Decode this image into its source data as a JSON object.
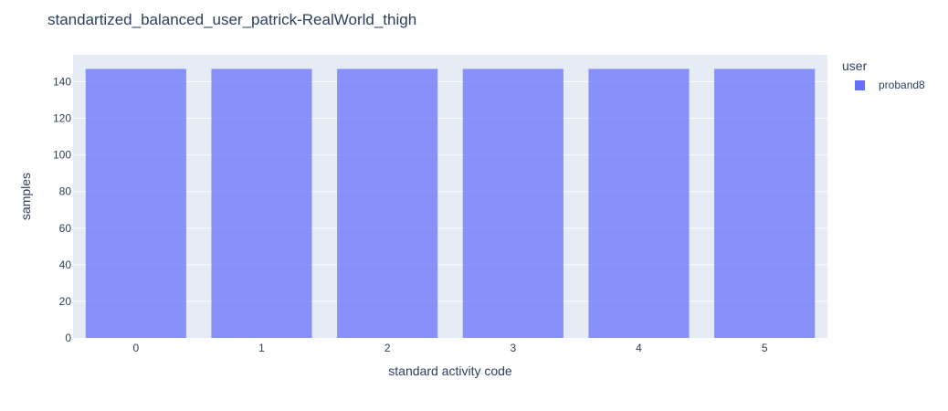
{
  "title": "standartized_balanced_user_patrick-RealWorld_thigh",
  "chart_data": {
    "type": "bar",
    "title": "standartized_balanced_user_patrick-RealWorld_thigh",
    "xlabel": "standard activity code",
    "ylabel": "samples",
    "categories": [
      "0",
      "1",
      "2",
      "3",
      "4",
      "5"
    ],
    "series": [
      {
        "name": "proband8",
        "values": [
          147,
          147,
          147,
          147,
          147,
          147
        ],
        "color": "#636efa"
      }
    ],
    "ylim": [
      0,
      154.7
    ],
    "yticks": [
      0,
      20,
      40,
      60,
      80,
      100,
      120,
      140
    ],
    "grid": true,
    "legend_title": "user",
    "legend_position": "top-right",
    "plot_background": "#e5ecf6"
  }
}
